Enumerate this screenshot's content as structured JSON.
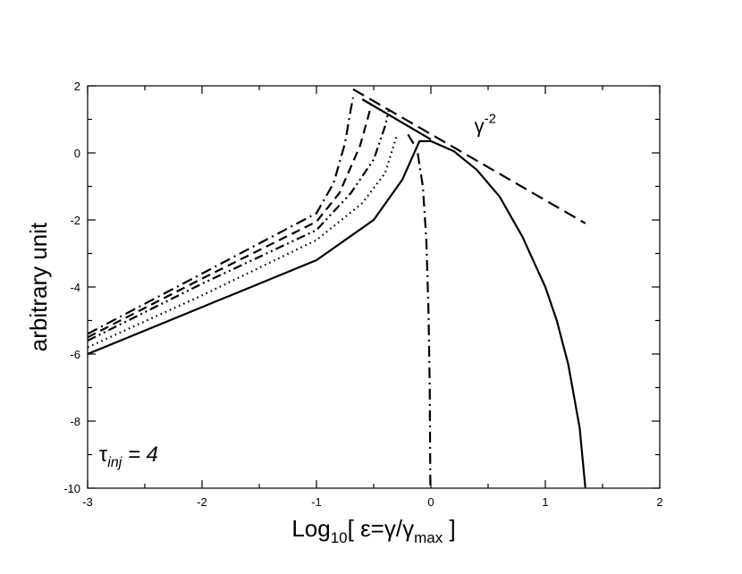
{
  "chart_data": {
    "type": "line",
    "xlabel": {
      "prefix": "Log",
      "sub": "10",
      "open": "[ ε=γ/γ",
      "sub2": "max",
      "close": " ]"
    },
    "ylabel": "arbitrary unit",
    "xlim": [
      -3,
      2
    ],
    "ylim": [
      -10,
      2
    ],
    "xticks": [
      -3,
      -2,
      -1,
      0,
      1,
      2
    ],
    "yticks": [
      -10,
      -8,
      -6,
      -4,
      -2,
      0,
      2
    ],
    "xtick_labels": [
      "-3",
      "-2",
      "-1",
      "0",
      "1",
      "2"
    ],
    "ytick_labels": [
      "-10",
      "-8",
      "-6",
      "-4",
      "-2",
      "0",
      "2"
    ],
    "grid": false,
    "annotations": {
      "power_law": {
        "base": "γ",
        "exp": "-2",
        "x": 0.38,
        "y": 0.6
      },
      "tau": {
        "symbol": "τ",
        "sub": "inj",
        "rest": " = 4",
        "x": -2.9,
        "y": -9.2
      }
    },
    "series": [
      {
        "style": "solid",
        "points": [
          [
            -3,
            -6
          ],
          [
            -2,
            -4.6
          ],
          [
            -1,
            -3.2
          ],
          [
            -0.5,
            -2.0
          ],
          [
            -0.25,
            -0.8
          ],
          [
            -0.1,
            0.35
          ],
          [
            0.0,
            0.35
          ],
          [
            0.2,
            0.05
          ],
          [
            0.4,
            -0.5
          ],
          [
            0.6,
            -1.3
          ],
          [
            0.8,
            -2.5
          ],
          [
            1.0,
            -4.0
          ],
          [
            1.1,
            -5.0
          ],
          [
            1.2,
            -6.3
          ],
          [
            1.3,
            -8.2
          ],
          [
            1.35,
            -10
          ]
        ]
      },
      {
        "style": "dotted",
        "points": [
          [
            -3,
            -5.8
          ],
          [
            -2,
            -4.25
          ],
          [
            -1,
            -2.6
          ],
          [
            -0.6,
            -1.5
          ],
          [
            -0.4,
            -0.6
          ],
          [
            -0.3,
            0.5
          ]
        ]
      },
      {
        "style": "dash-dot-dot",
        "points": [
          [
            -3,
            -5.6
          ],
          [
            -2,
            -3.9
          ],
          [
            -1,
            -2.3
          ],
          [
            -0.7,
            -1.2
          ],
          [
            -0.5,
            -0.2
          ],
          [
            -0.4,
            0.8
          ],
          [
            -0.37,
            1.25
          ]
        ]
      },
      {
        "style": "dashed",
        "points": [
          [
            -3,
            -5.5
          ],
          [
            -2,
            -3.75
          ],
          [
            -1,
            -2.05
          ],
          [
            -0.8,
            -1.2
          ],
          [
            -0.62,
            0.2
          ],
          [
            -0.55,
            1.05
          ],
          [
            -0.52,
            1.45
          ]
        ]
      },
      {
        "style": "dash-dot",
        "points": [
          [
            -3,
            -5.4
          ],
          [
            -2,
            -3.6
          ],
          [
            -1,
            -1.8
          ],
          [
            -0.85,
            -0.9
          ],
          [
            -0.75,
            0.3
          ],
          [
            -0.7,
            1.3
          ],
          [
            -0.68,
            1.65
          ]
        ]
      },
      {
        "style": "dash-dot",
        "points": [
          [
            -0.2,
            0.55
          ],
          [
            -0.12,
            0.1
          ],
          [
            -0.07,
            -1.0
          ],
          [
            -0.04,
            -2.6
          ],
          [
            -0.02,
            -4.8
          ],
          [
            -0.01,
            -7.0
          ],
          [
            -0.005,
            -10
          ]
        ]
      },
      {
        "style": "long-dash",
        "points": [
          [
            -0.68,
            1.9
          ],
          [
            1.35,
            -2.1
          ]
        ]
      },
      {
        "style": "solid",
        "points": [
          [
            -0.6,
            1.6
          ],
          [
            0.0,
            0.4
          ]
        ]
      }
    ]
  }
}
